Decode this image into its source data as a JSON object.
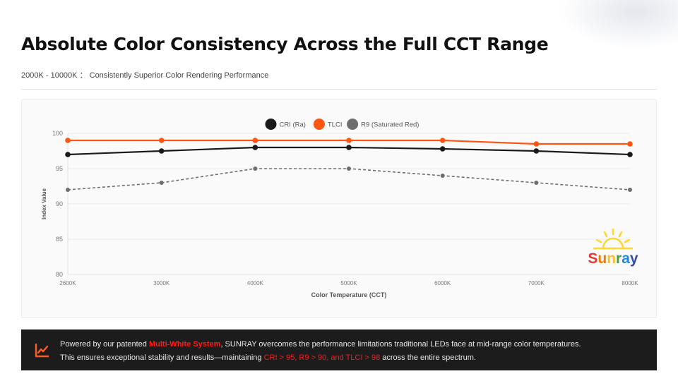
{
  "header": {
    "title": "Absolute Color Consistency Across the Full CCT Range",
    "subtitle": "2000K - 10000K ： Consistently Superior Color Rendering Performance"
  },
  "logo": {
    "text": "Sunray",
    "letters": [
      {
        "char": "S",
        "color": "#e53935"
      },
      {
        "char": "u",
        "color": "#f57c00"
      },
      {
        "char": "n",
        "color": "#fbc02d"
      },
      {
        "char": "r",
        "color": "#43a047"
      },
      {
        "char": "a",
        "color": "#1e88e5"
      },
      {
        "char": "y",
        "color": "#3949ab"
      }
    ],
    "sun_color": "#fdd835"
  },
  "banner": {
    "icon": "line-chart-icon",
    "line1_prefix": "Powered by our patented ",
    "line1_highlight": "Multi-White System",
    "line1_suffix": ", SUNRAY overcomes the performance limitations traditional LEDs face at mid-range color temperatures.",
    "line2_prefix": "This ensures exceptional stability and results—maintaining ",
    "line2_highlight": "CRI > 95, R9 > 90, and TLCI > 98",
    "line2_suffix": " across the entire spectrum.",
    "accent_color": "#ff1a1a",
    "icon_color": "#ff5a1f"
  },
  "chart_data": {
    "type": "line",
    "title": "",
    "xlabel": "Color Temperature (CCT)",
    "ylabel": "Index Value",
    "categories": [
      "2600K",
      "3000K",
      "4000K",
      "5000K",
      "6000K",
      "7000K",
      "8000K"
    ],
    "ylim": [
      80,
      100
    ],
    "yticks": [
      80,
      85,
      90,
      95,
      100
    ],
    "grid": true,
    "legend_position": "top-center",
    "series": [
      {
        "name": "CRI (Ra)",
        "color": "#1a1a1a",
        "dashed": false,
        "values": [
          97,
          97.5,
          98,
          98,
          97.8,
          97.5,
          97
        ]
      },
      {
        "name": "TLCI",
        "color": "#ff5512",
        "dashed": false,
        "values": [
          99,
          99,
          99,
          99,
          99,
          98.5,
          98.5
        ]
      },
      {
        "name": "R9 (Saturated Red)",
        "color": "#6e6e6e",
        "dashed": true,
        "values": [
          92,
          93,
          95,
          95,
          94,
          93,
          92
        ]
      }
    ]
  }
}
